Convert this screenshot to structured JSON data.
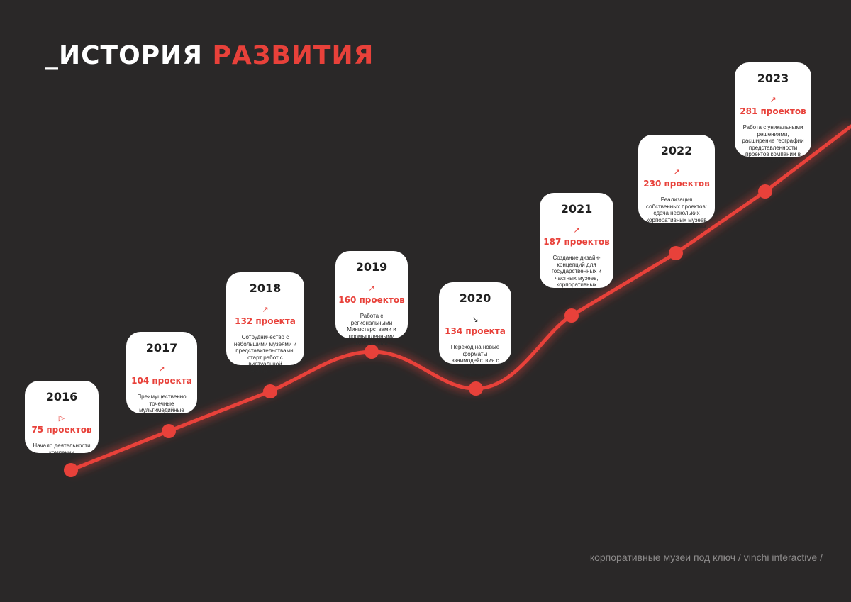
{
  "title": {
    "part1": "_ИСТОРИЯ",
    "part2": "РАЗВИТИЯ"
  },
  "colors": {
    "background": "#2a2828",
    "accent": "#e8413a",
    "card": "#ffffff"
  },
  "milestones": [
    {
      "year": "2016",
      "icon": "play-icon",
      "arrow": "▷",
      "count": "75 проектов",
      "desc": "Начало деятельности компании"
    },
    {
      "year": "2017",
      "icon": "arrow-up-right-icon",
      "arrow": "↗",
      "count": "104 проекта",
      "desc": "Преимущественно точечные мультимедийные решения"
    },
    {
      "year": "2018",
      "icon": "arrow-up-right-icon",
      "arrow": "↗",
      "count": "132 проекта",
      "desc": "Сотрудничество с небольшими музеями и представительствами, старт работ с виртуальной реальностью"
    },
    {
      "year": "2019",
      "icon": "arrow-up-right-icon",
      "arrow": "↗",
      "count": "160 проектов",
      "desc": "Работа с региональными Министерствами и промышленными компаниями"
    },
    {
      "year": "2020",
      "icon": "arrow-down-right-icon",
      "arrow": "↘",
      "count": "134 проекта",
      "desc": "Переход на новые форматы взаимодействия с музеями, поиск новых решений"
    },
    {
      "year": "2021",
      "icon": "arrow-up-right-icon",
      "arrow": "↗",
      "count": "187 проектов",
      "desc": "Создание дизайн-концепций для государственных и частных музеев, корпоративных пространств"
    },
    {
      "year": "2022",
      "icon": "arrow-up-right-icon",
      "arrow": "↗",
      "count": "230 проектов",
      "desc": "Реализация собственных проектов: сдача нескольких корпоративных музеев по нашим концепциям"
    },
    {
      "year": "2023",
      "icon": "arrow-up-right-icon",
      "arrow": "↗",
      "count": "281 проектов",
      "desc": "Работа с уникальными решениями, расширение географии представленности проектов компании в России"
    }
  ],
  "footer": "корпоративные музеи под ключ / vinchi interactive /"
}
